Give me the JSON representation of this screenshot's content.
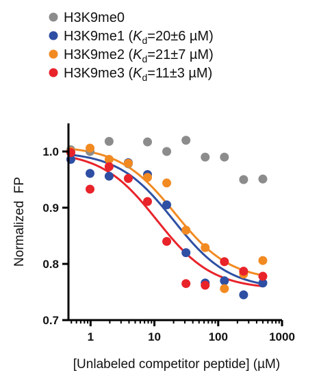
{
  "chart_data": {
    "type": "scatter",
    "title": "",
    "xlabel": "[Unlabeled competitor peptide] (µM)",
    "ylabel": "Normalized  FP",
    "xscale": "log",
    "xlim": [
      0.45,
      1000
    ],
    "ylim": [
      0.7,
      1.05
    ],
    "x_ticks": [
      1,
      10,
      100,
      1000
    ],
    "x_tick_labels": [
      "1",
      "10",
      "100",
      "1000"
    ],
    "y_ticks": [
      0.7,
      0.8,
      0.9,
      1.0
    ],
    "y_tick_labels": [
      "0.7",
      "0.8",
      "0.9",
      "1.0"
    ],
    "grid": false,
    "legend_position": "top-left",
    "x": [
      0.49,
      0.98,
      1.95,
      3.9,
      7.8,
      15.6,
      31.25,
      62.5,
      125,
      250,
      500
    ],
    "series": [
      {
        "name": "H3K9me0",
        "kd_prefix": "",
        "kd_value": "",
        "color": "#8c8c8c",
        "values": [
          1.003,
          1.0,
          1.018,
          0.978,
          1.017,
          1.0,
          1.02,
          0.99,
          0.99,
          0.95,
          0.951
        ],
        "fit": null
      },
      {
        "name": "H3K9me1",
        "kd_prefix": " (",
        "kd_value": "=20±6 µM)",
        "color": "#2e4fa3",
        "values": [
          0.986,
          0.961,
          0.956,
          0.98,
          0.959,
          0.905,
          0.82,
          0.766,
          0.77,
          0.745,
          0.766
        ],
        "fit": {
          "top": 1.0,
          "bottom": 0.755,
          "kd": 20
        }
      },
      {
        "name": "H3K9me2",
        "kd_prefix": " (",
        "kd_value": "=21±7 µM)",
        "color": "#f28a22",
        "values": [
          1.0,
          1.006,
          0.986,
          0.979,
          0.954,
          0.944,
          0.86,
          0.829,
          0.756,
          0.782,
          0.806
        ],
        "fit": {
          "top": 1.01,
          "bottom": 0.77,
          "kd": 21
        }
      },
      {
        "name": "H3K9me3",
        "kd_prefix": " (",
        "kd_value": "=11±3 µM)",
        "color": "#e8232a",
        "values": [
          0.998,
          0.933,
          0.973,
          0.952,
          0.911,
          0.84,
          0.765,
          0.762,
          0.804,
          0.787,
          0.778
        ],
        "fit": {
          "top": 1.0,
          "bottom": 0.755,
          "kd": 11
        }
      }
    ],
    "kd_symbol": "K",
    "kd_subscript": "d"
  }
}
